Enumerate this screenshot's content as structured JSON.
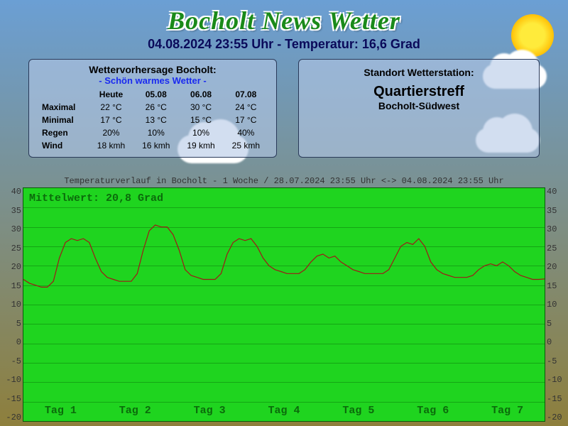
{
  "header": {
    "title": "Bocholt News Wetter",
    "subtitle": "04.08.2024 23:55 Uhr - Temperatur: 16,6 Grad"
  },
  "forecast_panel": {
    "title": "Wettervorhersage Bocholt:",
    "summary": "- Schön warmes Wetter -",
    "columns": [
      "Heute",
      "05.08",
      "06.08",
      "07.08"
    ],
    "rows": [
      {
        "label": "Maximal",
        "vals": [
          "22 °C",
          "26 °C",
          "30 °C",
          "24 °C"
        ]
      },
      {
        "label": "Minimal",
        "vals": [
          "17 °C",
          "13 °C",
          "15 °C",
          "17 °C"
        ]
      },
      {
        "label": "Regen",
        "vals": [
          "20%",
          "10%",
          "10%",
          "40%"
        ]
      },
      {
        "label": "Wind",
        "vals": [
          "18 kmh",
          "16 kmh",
          "19 kmh",
          "25 kmh"
        ]
      }
    ]
  },
  "station_panel": {
    "title": "Standort Wetterstation:",
    "name": "Quartierstreff",
    "location": "Bocholt-Südwest"
  },
  "chart": {
    "title": "Temperaturverlauf in Bocholt - 1 Woche / 28.07.2024 23:55 Uhr <-> 04.08.2024 23:55 Uhr",
    "mean_label": "Mittelwert: 20,8 Grad",
    "type": "line",
    "ylim": [
      -20,
      40
    ],
    "ytick_step": 5,
    "yticks": [
      40,
      35,
      30,
      25,
      20,
      15,
      10,
      5,
      0,
      -5,
      -10,
      -15,
      -20
    ],
    "day_labels": [
      "Tag 1",
      "Tag 2",
      "Tag 3",
      "Tag 4",
      "Tag 5",
      "Tag 6",
      "Tag 7"
    ],
    "background_color": "#1fd41f",
    "grid_color": "#14a514",
    "line_color": "#a01818",
    "line_width": 1.2,
    "data": [
      16.5,
      15.5,
      15,
      14.5,
      14.5,
      16,
      22,
      26,
      27,
      26.5,
      27,
      26,
      22,
      18.5,
      17,
      16.5,
      16,
      16,
      16,
      18,
      24,
      29,
      30.5,
      30,
      30,
      28,
      24,
      19,
      17.5,
      17,
      16.5,
      16.5,
      16.5,
      18,
      23,
      26,
      27,
      26.5,
      27,
      25,
      22,
      20,
      19,
      18.5,
      18,
      18,
      18,
      19,
      21,
      22.5,
      23,
      22,
      22.5,
      21,
      20,
      19,
      18.5,
      18,
      18,
      18,
      18,
      19,
      22,
      25,
      26,
      25.5,
      27,
      25,
      21,
      19,
      18,
      17.5,
      17,
      17,
      17,
      17.5,
      19,
      20,
      20.5,
      20,
      21,
      20,
      18.5,
      17.5,
      17,
      16.5,
      16.5,
      16.6
    ]
  }
}
